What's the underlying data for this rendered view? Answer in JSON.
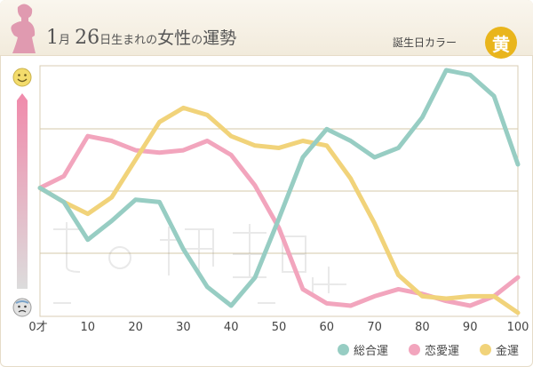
{
  "header": {
    "month": "1",
    "month_unit": "月",
    "day": "26",
    "day_suffix": "日生まれの",
    "gender": "女性",
    "particle": "の",
    "fortune": "運勢",
    "birth_color_label": "誕生日カラー",
    "birth_color_name": "黄"
  },
  "colors": {
    "overall": "#97cdc3",
    "love": "#f2a5bd",
    "money": "#f1d37a",
    "birth_color": "#e9b51c"
  },
  "chart_data": {
    "type": "line",
    "x": [
      0,
      5,
      10,
      15,
      20,
      25,
      30,
      35,
      40,
      45,
      50,
      55,
      60,
      65,
      70,
      75,
      80,
      85,
      90,
      95,
      100
    ],
    "xlim": [
      0,
      100
    ],
    "ylim": [
      0,
      100
    ],
    "x_ticks": [
      {
        "value": 0,
        "label": "0才"
      },
      {
        "value": 10,
        "label": "10"
      },
      {
        "value": 20,
        "label": "20"
      },
      {
        "value": 30,
        "label": "30"
      },
      {
        "value": 40,
        "label": "40"
      },
      {
        "value": 50,
        "label": "50"
      },
      {
        "value": 60,
        "label": "60"
      },
      {
        "value": 70,
        "label": "70"
      },
      {
        "value": 80,
        "label": "80"
      },
      {
        "value": 90,
        "label": "90"
      },
      {
        "value": 100,
        "label": "100"
      }
    ],
    "grid": true,
    "legend_position": "bottom-right",
    "series": [
      {
        "name": "総合運",
        "color": "#97cdc3",
        "values": [
          50,
          44,
          28,
          36,
          45,
          44,
          24,
          8,
          0,
          12,
          37,
          63,
          75,
          70,
          63,
          67,
          80,
          100,
          98,
          89,
          60
        ]
      },
      {
        "name": "恋愛運",
        "color": "#f2a5bd",
        "values": [
          50,
          55,
          72,
          70,
          66,
          65,
          66,
          70,
          64,
          51,
          33,
          7,
          1,
          0,
          4,
          7,
          5,
          2,
          0,
          4,
          12
        ]
      },
      {
        "name": "金運",
        "color": "#f1d37a",
        "values": [
          50,
          44,
          39,
          46,
          62,
          78,
          84,
          81,
          72,
          68,
          67,
          70,
          68,
          54,
          35,
          13,
          4,
          3,
          4,
          4,
          -3
        ]
      }
    ]
  }
}
